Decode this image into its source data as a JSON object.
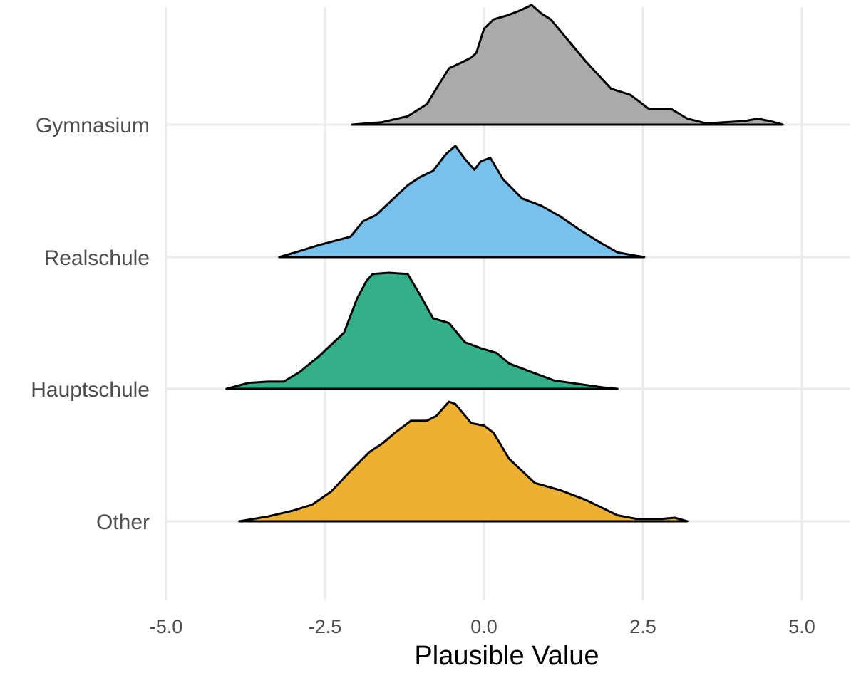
{
  "chart_data": {
    "type": "area",
    "subtype": "ridgeline density",
    "title": "",
    "xlabel": "Plausible Value",
    "ylabel": "",
    "xlim": [
      -5.0,
      5.0
    ],
    "x_ticks": [
      "-5.0",
      "-2.5",
      "0.0",
      "2.5",
      "5.0"
    ],
    "categories": [
      "Gymnasium",
      "Realschule",
      "Hauptschule",
      "Other"
    ],
    "grid": true,
    "legend": "none",
    "series": [
      {
        "name": "Gymnasium",
        "color": "#aaaaaa",
        "points": [
          [
            -2.08,
            0
          ],
          [
            -1.6,
            0.02
          ],
          [
            -1.2,
            0.07
          ],
          [
            -0.9,
            0.17
          ],
          [
            -0.75,
            0.3
          ],
          [
            -0.55,
            0.47
          ],
          [
            -0.35,
            0.52
          ],
          [
            -0.2,
            0.56
          ],
          [
            -0.12,
            0.6
          ],
          [
            0.0,
            0.8
          ],
          [
            0.15,
            0.88
          ],
          [
            0.35,
            0.91
          ],
          [
            0.55,
            0.95
          ],
          [
            0.75,
            1.0
          ],
          [
            0.9,
            0.93
          ],
          [
            1.05,
            0.88
          ],
          [
            1.3,
            0.72
          ],
          [
            1.6,
            0.53
          ],
          [
            2.0,
            0.3
          ],
          [
            2.3,
            0.25
          ],
          [
            2.6,
            0.13
          ],
          [
            2.8,
            0.13
          ],
          [
            2.95,
            0.13
          ],
          [
            3.2,
            0.05
          ],
          [
            3.5,
            0.01
          ],
          [
            3.8,
            0.02
          ],
          [
            4.1,
            0.03
          ],
          [
            4.3,
            0.05
          ],
          [
            4.5,
            0.03
          ],
          [
            4.7,
            0
          ]
        ]
      },
      {
        "name": "Realschule",
        "color": "#78c1ed",
        "points": [
          [
            -3.22,
            0
          ],
          [
            -2.9,
            0.05
          ],
          [
            -2.6,
            0.1
          ],
          [
            -2.1,
            0.17
          ],
          [
            -1.9,
            0.3
          ],
          [
            -1.7,
            0.35
          ],
          [
            -1.5,
            0.45
          ],
          [
            -1.2,
            0.6
          ],
          [
            -1.0,
            0.67
          ],
          [
            -0.8,
            0.72
          ],
          [
            -0.6,
            0.86
          ],
          [
            -0.45,
            0.93
          ],
          [
            -0.3,
            0.82
          ],
          [
            -0.15,
            0.73
          ],
          [
            -0.05,
            0.8
          ],
          [
            0.1,
            0.83
          ],
          [
            0.3,
            0.65
          ],
          [
            0.6,
            0.49
          ],
          [
            0.9,
            0.43
          ],
          [
            1.2,
            0.34
          ],
          [
            1.5,
            0.23
          ],
          [
            1.8,
            0.13
          ],
          [
            2.1,
            0.04
          ],
          [
            2.3,
            0.02
          ],
          [
            2.52,
            0
          ]
        ]
      },
      {
        "name": "Hauptschule",
        "color": "#33b089",
        "points": [
          [
            -4.05,
            0
          ],
          [
            -3.7,
            0.05
          ],
          [
            -3.4,
            0.06
          ],
          [
            -3.15,
            0.06
          ],
          [
            -2.9,
            0.14
          ],
          [
            -2.6,
            0.27
          ],
          [
            -2.2,
            0.47
          ],
          [
            -2.0,
            0.75
          ],
          [
            -1.85,
            0.9
          ],
          [
            -1.75,
            0.96
          ],
          [
            -1.5,
            0.97
          ],
          [
            -1.2,
            0.96
          ],
          [
            -1.0,
            0.78
          ],
          [
            -0.8,
            0.59
          ],
          [
            -0.55,
            0.55
          ],
          [
            -0.3,
            0.39
          ],
          [
            -0.05,
            0.34
          ],
          [
            0.2,
            0.3
          ],
          [
            0.4,
            0.21
          ],
          [
            0.7,
            0.15
          ],
          [
            1.1,
            0.07
          ],
          [
            1.5,
            0.04
          ],
          [
            1.9,
            0.01
          ],
          [
            2.1,
            0
          ]
        ]
      },
      {
        "name": "Other",
        "color": "#eeb030",
        "points": [
          [
            -3.85,
            0
          ],
          [
            -3.4,
            0.04
          ],
          [
            -3.0,
            0.09
          ],
          [
            -2.7,
            0.14
          ],
          [
            -2.4,
            0.25
          ],
          [
            -2.1,
            0.42
          ],
          [
            -1.8,
            0.58
          ],
          [
            -1.6,
            0.65
          ],
          [
            -1.4,
            0.74
          ],
          [
            -1.15,
            0.84
          ],
          [
            -0.9,
            0.84
          ],
          [
            -0.75,
            0.88
          ],
          [
            -0.55,
            1.0
          ],
          [
            -0.45,
            0.98
          ],
          [
            -0.2,
            0.82
          ],
          [
            0.0,
            0.8
          ],
          [
            0.15,
            0.74
          ],
          [
            0.4,
            0.52
          ],
          [
            0.8,
            0.32
          ],
          [
            1.2,
            0.26
          ],
          [
            1.6,
            0.18
          ],
          [
            2.1,
            0.05
          ],
          [
            2.4,
            0.02
          ],
          [
            2.8,
            0.02
          ],
          [
            3.0,
            0.03
          ],
          [
            3.2,
            0
          ]
        ]
      }
    ]
  }
}
